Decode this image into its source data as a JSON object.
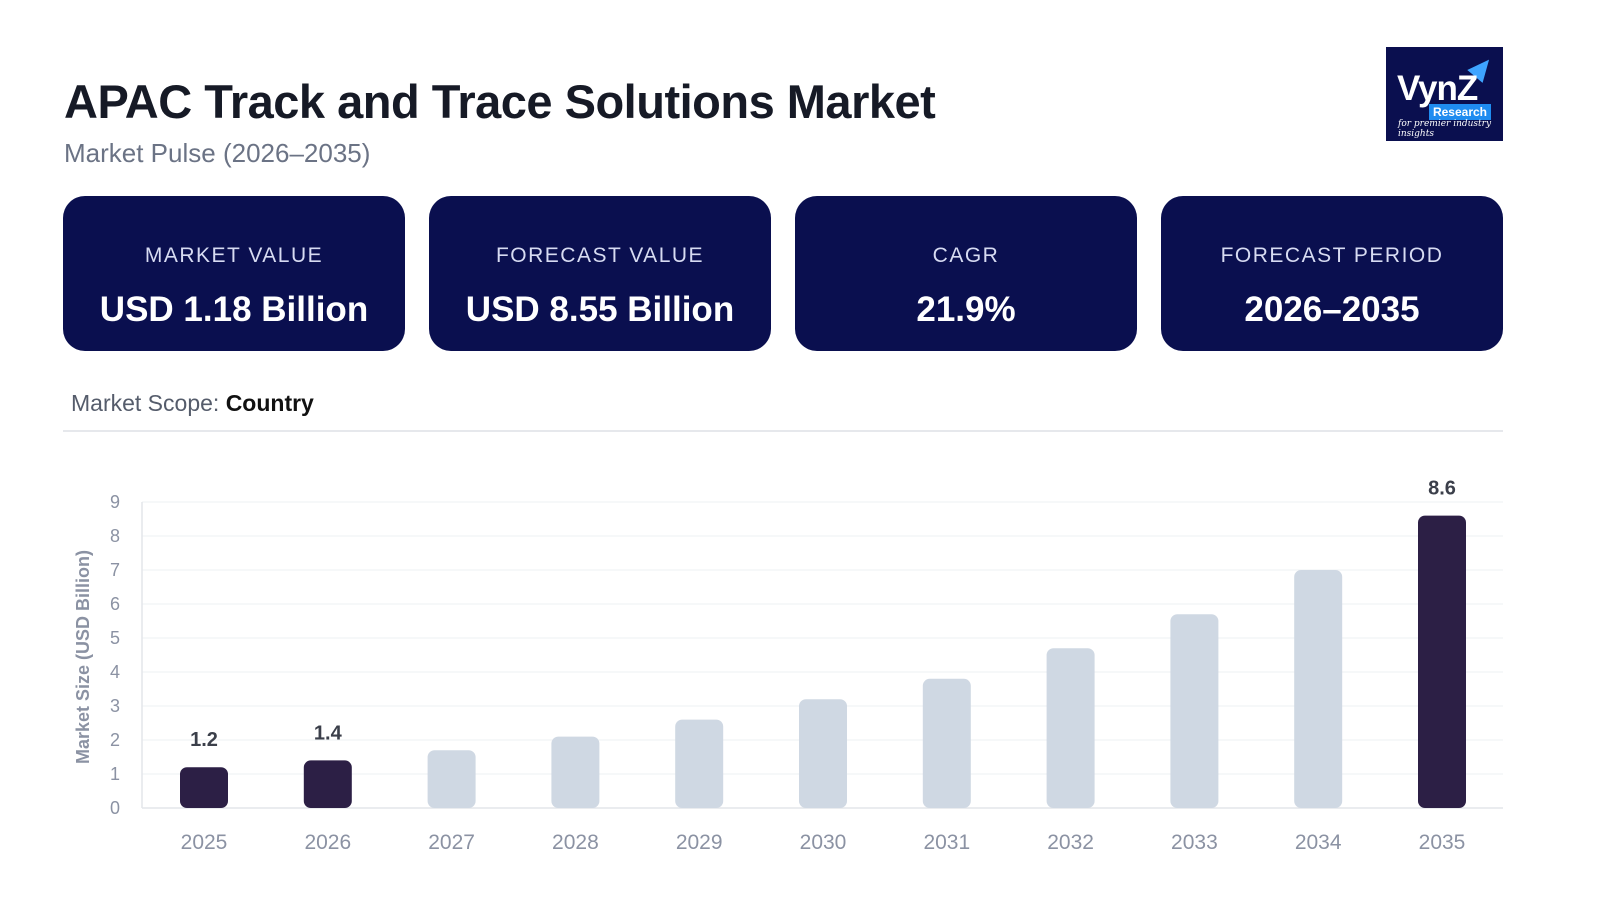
{
  "header": {
    "title": "APAC Track and Trace Solutions Market",
    "subtitle": "Market Pulse (2026–2035)"
  },
  "logo": {
    "brand": "VynZ",
    "sub": "Research",
    "tagline": "for premier industry insights"
  },
  "cards": [
    {
      "label": "MARKET VALUE",
      "value": "USD 1.18 Billion"
    },
    {
      "label": "FORECAST VALUE",
      "value": "USD 8.55 Billion"
    },
    {
      "label": "CAGR",
      "value": "21.9%"
    },
    {
      "label": "FORECAST PERIOD",
      "value": "2026–2035"
    }
  ],
  "scope": {
    "label": "Market Scope:",
    "value": "Country"
  },
  "colors": {
    "card_bg": "#0a0f4f",
    "highlight_bar": "#2c1f45",
    "muted_bar": "#cfd8e3"
  },
  "chart_data": {
    "type": "bar",
    "categories": [
      "2025",
      "2026",
      "2027",
      "2028",
      "2029",
      "2030",
      "2031",
      "2032",
      "2033",
      "2034",
      "2035"
    ],
    "values": [
      1.2,
      1.4,
      1.7,
      2.1,
      2.6,
      3.2,
      3.8,
      4.7,
      5.7,
      7.0,
      8.6
    ],
    "highlighted": [
      true,
      true,
      false,
      false,
      false,
      false,
      false,
      false,
      false,
      false,
      true
    ],
    "data_labels": [
      "1.2",
      "1.4",
      "",
      "",
      "",
      "",
      "",
      "",
      "",
      "",
      "8.6"
    ],
    "ylabel": "Market Size (USD Billion)",
    "xlabel": "",
    "ylim": [
      0,
      9
    ],
    "yticks": [
      0,
      1,
      2,
      3,
      4,
      5,
      6,
      7,
      8,
      9
    ],
    "grid": true
  }
}
